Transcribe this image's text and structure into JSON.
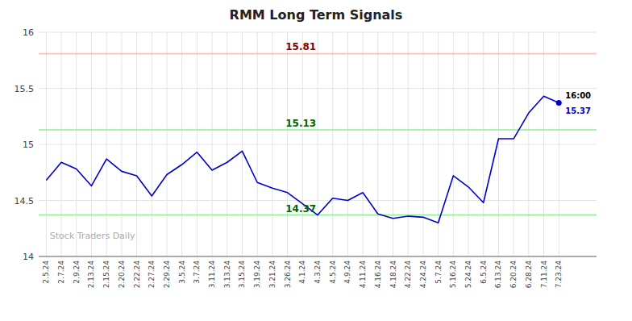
{
  "chart_data": {
    "type": "line",
    "title": "RMM Long Term Signals",
    "watermark": "Stock Traders Daily",
    "categories": [
      "2.5.24",
      "2.7.24",
      "2.9.24",
      "2.13.24",
      "2.15.24",
      "2.20.24",
      "2.22.24",
      "2.27.24",
      "2.29.24",
      "3.5.24",
      "3.7.24",
      "3.11.24",
      "3.13.24",
      "3.15.24",
      "3.19.24",
      "3.21.24",
      "3.26.24",
      "4.1.24",
      "4.3.24",
      "4.5.24",
      "4.9.24",
      "4.11.24",
      "4.16.24",
      "4.18.24",
      "4.22.24",
      "4.24.24",
      "5.7.24",
      "5.16.24",
      "5.24.24",
      "6.5.24",
      "6.13.24",
      "6.20.24",
      "6.28.24",
      "7.11.24",
      "7.23.24"
    ],
    "values": [
      14.68,
      14.84,
      14.78,
      14.63,
      14.87,
      14.76,
      14.72,
      14.54,
      14.73,
      14.82,
      14.93,
      14.77,
      14.84,
      14.94,
      14.66,
      14.61,
      14.57,
      14.47,
      14.37,
      14.52,
      14.5,
      14.57,
      14.38,
      14.34,
      14.36,
      14.35,
      14.3,
      14.72,
      14.62,
      14.48,
      15.05,
      15.05,
      15.28,
      15.43,
      15.37
    ],
    "color": "#0000cc",
    "ylim": [
      14.0,
      16.0
    ],
    "yticks": [
      14,
      14.5,
      15,
      15.5,
      16
    ],
    "grid": true,
    "reference_lines": [
      {
        "value": 15.81,
        "color": "#ffbbbb",
        "label_color": "#8b0000"
      },
      {
        "value": 15.13,
        "color": "#90ee90",
        "label_color": "#006400"
      },
      {
        "value": 14.37,
        "color": "#90ee90",
        "label_color": "#006400"
      }
    ],
    "endpoint_labels": {
      "time": "16:00",
      "value": "15.37"
    }
  }
}
